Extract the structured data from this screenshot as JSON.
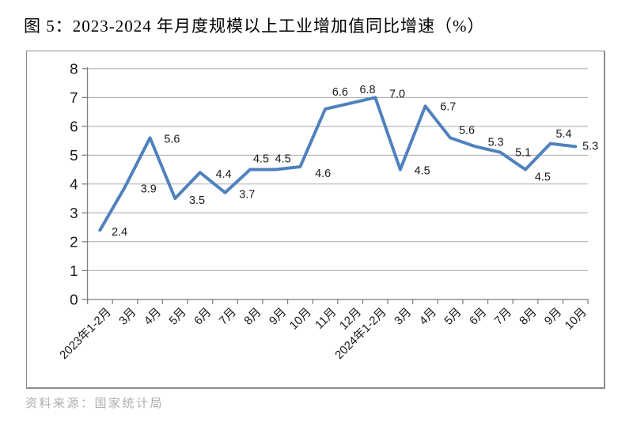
{
  "page": {
    "title": "图 5：2023-2024 年月度规模以上工业增加值同比增速（%）",
    "source": "资料来源：国家统计局"
  },
  "chart_data": {
    "type": "line",
    "title": "2023-2024 年月度规模以上工业增加值同比增速（%）",
    "categories": [
      "2023年1-2月",
      "3月",
      "4月",
      "5月",
      "6月",
      "7月",
      "8月",
      "9月",
      "10月",
      "11月",
      "12月",
      "2024年1-2月",
      "3月",
      "4月",
      "5月",
      "6月",
      "7月",
      "8月",
      "9月",
      "10月"
    ],
    "series": [
      {
        "name": "规模以上工业增加值同比增速",
        "values": [
          2.4,
          3.9,
          5.6,
          3.5,
          4.4,
          3.7,
          4.5,
          4.5,
          4.6,
          6.6,
          6.8,
          7.0,
          4.5,
          6.7,
          5.6,
          5.3,
          5.1,
          4.5,
          5.4,
          5.3
        ]
      }
    ],
    "data_labels": [
      "2.4",
      "3.9",
      "5.6",
      "3.5",
      "4.4",
      "3.7",
      "4.5",
      "4.5",
      "4.6",
      "6.6",
      "6.8",
      "7.0",
      "4.5",
      "6.7",
      "5.6",
      "5.3",
      "5.1",
      "4.5",
      "5.4",
      "5.3"
    ],
    "xlabel": "",
    "ylabel": "",
    "ylim": [
      0,
      8
    ],
    "ytick_step": 1,
    "ytick_labels": [
      "0",
      "1",
      "2",
      "3",
      "4",
      "5",
      "6",
      "7",
      "8"
    ],
    "grid": true,
    "legend": false,
    "x_label_rotation_deg": -45,
    "colors": {
      "line": "#4F81BD",
      "gridline": "#a6a6a6",
      "axis": "#808080",
      "label_text": "#1a1a1a",
      "source_text": "#aeaeae"
    }
  }
}
